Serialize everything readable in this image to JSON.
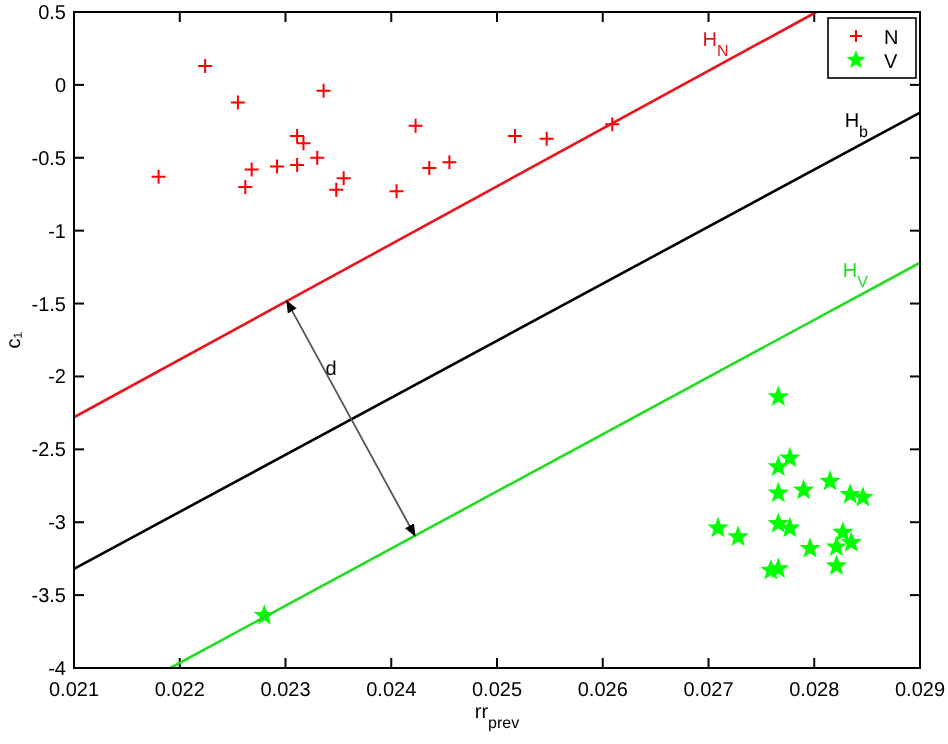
{
  "chart_data": {
    "type": "scatter",
    "xlabel": "rr$_{prev}$",
    "ylabel": "c₁",
    "xlim": [
      0.021,
      0.029
    ],
    "ylim": [
      -4,
      0.5
    ],
    "xticks": [
      0.021,
      0.022,
      0.023,
      0.024,
      0.025,
      0.026,
      0.027,
      0.028,
      0.029
    ],
    "yticks": [
      -4,
      -3.5,
      -3,
      -2.5,
      -2,
      -1.5,
      -1,
      -0.5,
      0,
      0.5
    ],
    "grid": false,
    "legend": "top right",
    "series": [
      {
        "name": "N",
        "marker": "cross",
        "color": "#ff0000",
        "x": [
          0.0218,
          0.02224,
          0.02255,
          0.02262,
          0.02268,
          0.02292,
          0.02311,
          0.02317,
          0.02311,
          0.0233,
          0.02336,
          0.02348,
          0.02355,
          0.02405,
          0.02423,
          0.02436,
          0.02455,
          0.02517,
          0.02547,
          0.02609
        ],
        "values": [
          -0.63,
          0.13,
          -0.12,
          -0.7,
          -0.58,
          -0.56,
          -0.35,
          -0.4,
          -0.55,
          -0.5,
          -0.04,
          -0.72,
          -0.64,
          -0.73,
          -0.28,
          -0.57,
          -0.53,
          -0.35,
          -0.37,
          -0.27
        ]
      },
      {
        "name": "V",
        "marker": "star",
        "color": "#00ff00",
        "x": [
          0.02766,
          0.02777,
          0.02766,
          0.02766,
          0.0279,
          0.02815,
          0.02834,
          0.02846,
          0.02709,
          0.02728,
          0.02766,
          0.02777,
          0.02796,
          0.02827,
          0.02821,
          0.02835,
          0.02821,
          0.02759,
          0.02766,
          0.0228
        ],
        "values": [
          -2.14,
          -2.56,
          -2.62,
          -2.8,
          -2.78,
          -2.72,
          -2.81,
          -2.83,
          -3.04,
          -3.1,
          -3.01,
          -3.04,
          -3.18,
          -3.07,
          -3.17,
          -3.14,
          -3.3,
          -3.33,
          -3.32,
          -3.64
        ]
      },
      {
        "name": "H$_{N}$",
        "type": "line",
        "color": "#e8141e",
        "x": [
          0.021,
          0.02802
        ],
        "values": [
          -2.28,
          0.5
        ]
      },
      {
        "name": "H$_{b}$",
        "type": "line",
        "color": "#000000",
        "x": [
          0.021,
          0.029
        ],
        "values": [
          -3.32,
          -0.19
        ]
      },
      {
        "name": "H$_{V}$",
        "type": "line",
        "color": "#22dd22",
        "x": [
          0.02191,
          0.029
        ],
        "values": [
          -4,
          -1.22
        ]
      }
    ],
    "annotations": [
      {
        "text": "d",
        "x": 0.02362,
        "y": -2.29
      }
    ]
  }
}
